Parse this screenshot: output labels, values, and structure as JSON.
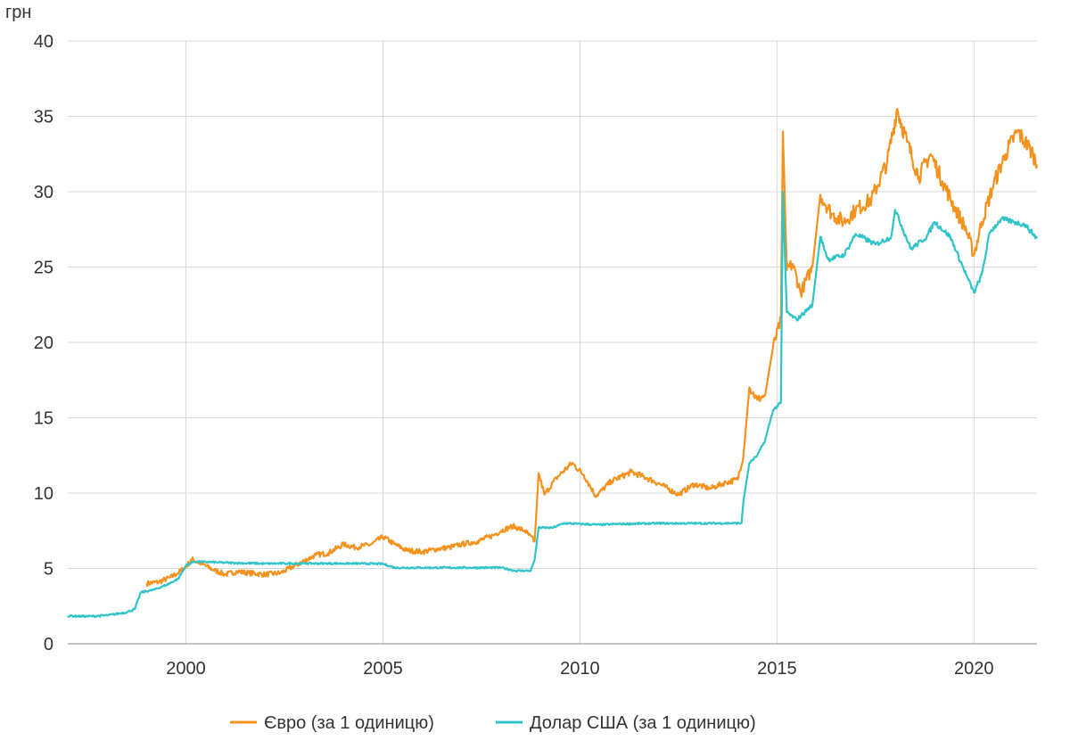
{
  "chart_data": {
    "type": "line",
    "y_unit": "грн",
    "xlim": [
      1997.0,
      2021.6
    ],
    "ylim": [
      0,
      40
    ],
    "x_ticks": [
      2000,
      2005,
      2010,
      2015,
      2020
    ],
    "x_tick_labels": [
      "2000",
      "2005",
      "2010",
      "2015",
      "2020"
    ],
    "y_ticks": [
      0,
      5,
      10,
      15,
      20,
      25,
      30,
      35,
      40
    ],
    "y_tick_labels": [
      "0",
      "5",
      "10",
      "15",
      "20",
      "25",
      "30",
      "35",
      "40"
    ],
    "grid": true,
    "legend_position": "bottom",
    "series": [
      {
        "name": "Євро (за 1 одиницю)",
        "color": "#f5921e",
        "points": [
          [
            1999.0,
            4.0
          ],
          [
            1999.3,
            4.1
          ],
          [
            1999.6,
            4.4
          ],
          [
            1999.8,
            4.7
          ],
          [
            2000.0,
            5.1
          ],
          [
            2000.15,
            5.6
          ],
          [
            2000.4,
            5.3
          ],
          [
            2000.7,
            4.9
          ],
          [
            2001.0,
            4.6
          ],
          [
            2001.3,
            4.8
          ],
          [
            2001.6,
            4.7
          ],
          [
            2002.0,
            4.6
          ],
          [
            2002.4,
            4.7
          ],
          [
            2002.7,
            5.1
          ],
          [
            2003.0,
            5.5
          ],
          [
            2003.3,
            5.9
          ],
          [
            2003.6,
            6.0
          ],
          [
            2004.0,
            6.6
          ],
          [
            2004.3,
            6.4
          ],
          [
            2004.7,
            6.6
          ],
          [
            2005.0,
            7.1
          ],
          [
            2005.3,
            6.6
          ],
          [
            2005.6,
            6.2
          ],
          [
            2006.0,
            6.1
          ],
          [
            2006.4,
            6.3
          ],
          [
            2006.7,
            6.4
          ],
          [
            2007.0,
            6.6
          ],
          [
            2007.4,
            6.8
          ],
          [
            2007.8,
            7.2
          ],
          [
            2008.0,
            7.5
          ],
          [
            2008.3,
            7.8
          ],
          [
            2008.6,
            7.5
          ],
          [
            2008.85,
            6.8
          ],
          [
            2008.95,
            11.3
          ],
          [
            2009.1,
            9.9
          ],
          [
            2009.4,
            11.0
          ],
          [
            2009.8,
            12.0
          ],
          [
            2010.1,
            11.2
          ],
          [
            2010.4,
            9.8
          ],
          [
            2010.8,
            10.8
          ],
          [
            2011.3,
            11.4
          ],
          [
            2011.7,
            11.0
          ],
          [
            2012.1,
            10.5
          ],
          [
            2012.5,
            9.9
          ],
          [
            2012.9,
            10.6
          ],
          [
            2013.3,
            10.3
          ],
          [
            2013.7,
            10.7
          ],
          [
            2014.0,
            10.9
          ],
          [
            2014.15,
            12.5
          ],
          [
            2014.3,
            17.0
          ],
          [
            2014.5,
            16.2
          ],
          [
            2014.7,
            16.5
          ],
          [
            2014.9,
            19.7
          ],
          [
            2015.1,
            21.5
          ],
          [
            2015.15,
            34.0
          ],
          [
            2015.25,
            24.8
          ],
          [
            2015.4,
            25.2
          ],
          [
            2015.6,
            23.3
          ],
          [
            2015.9,
            25.0
          ],
          [
            2016.1,
            29.8
          ],
          [
            2016.4,
            28.5
          ],
          [
            2016.7,
            28.0
          ],
          [
            2017.0,
            28.8
          ],
          [
            2017.4,
            29.5
          ],
          [
            2017.8,
            32.0
          ],
          [
            2018.05,
            35.5
          ],
          [
            2018.3,
            33.3
          ],
          [
            2018.6,
            31.0
          ],
          [
            2018.9,
            32.5
          ],
          [
            2019.2,
            30.7
          ],
          [
            2019.5,
            29.0
          ],
          [
            2019.8,
            27.5
          ],
          [
            2020.0,
            25.8
          ],
          [
            2020.2,
            28.0
          ],
          [
            2020.5,
            30.5
          ],
          [
            2020.8,
            32.5
          ],
          [
            2021.1,
            34.0
          ],
          [
            2021.3,
            33.3
          ],
          [
            2021.5,
            32.5
          ],
          [
            2021.6,
            31.8
          ]
        ]
      },
      {
        "name": "Долар США (за 1 одиницю)",
        "color": "#2ec4c8",
        "points": [
          [
            1997.0,
            1.85
          ],
          [
            1997.5,
            1.82
          ],
          [
            1998.0,
            1.88
          ],
          [
            1998.5,
            2.1
          ],
          [
            1998.7,
            2.3
          ],
          [
            1998.85,
            3.4
          ],
          [
            1999.2,
            3.6
          ],
          [
            1999.5,
            3.9
          ],
          [
            1999.8,
            4.3
          ],
          [
            2000.0,
            5.2
          ],
          [
            2000.2,
            5.45
          ],
          [
            2000.6,
            5.42
          ],
          [
            2001.0,
            5.38
          ],
          [
            2001.5,
            5.35
          ],
          [
            2002.0,
            5.32
          ],
          [
            2002.5,
            5.33
          ],
          [
            2003.0,
            5.33
          ],
          [
            2003.5,
            5.33
          ],
          [
            2004.0,
            5.33
          ],
          [
            2004.5,
            5.32
          ],
          [
            2005.0,
            5.3
          ],
          [
            2005.3,
            5.05
          ],
          [
            2006.0,
            5.05
          ],
          [
            2007.0,
            5.05
          ],
          [
            2008.0,
            5.05
          ],
          [
            2008.35,
            4.85
          ],
          [
            2008.75,
            4.85
          ],
          [
            2008.85,
            5.6
          ],
          [
            2008.95,
            7.7
          ],
          [
            2009.3,
            7.7
          ],
          [
            2009.6,
            8.0
          ],
          [
            2010.0,
            7.95
          ],
          [
            2010.5,
            7.9
          ],
          [
            2011.0,
            7.95
          ],
          [
            2012.0,
            7.99
          ],
          [
            2013.0,
            7.99
          ],
          [
            2013.9,
            8.0
          ],
          [
            2014.1,
            8.0
          ],
          [
            2014.15,
            9.5
          ],
          [
            2014.3,
            12.0
          ],
          [
            2014.5,
            12.5
          ],
          [
            2014.7,
            13.5
          ],
          [
            2014.9,
            15.5
          ],
          [
            2015.1,
            16.0
          ],
          [
            2015.15,
            30.0
          ],
          [
            2015.25,
            22.0
          ],
          [
            2015.5,
            21.5
          ],
          [
            2015.9,
            22.5
          ],
          [
            2016.1,
            27.0
          ],
          [
            2016.3,
            25.5
          ],
          [
            2016.7,
            25.8
          ],
          [
            2017.0,
            27.2
          ],
          [
            2017.5,
            26.5
          ],
          [
            2017.9,
            27.0
          ],
          [
            2018.0,
            28.8
          ],
          [
            2018.4,
            26.2
          ],
          [
            2018.8,
            27.0
          ],
          [
            2019.0,
            28.0
          ],
          [
            2019.4,
            27.0
          ],
          [
            2019.8,
            24.5
          ],
          [
            2020.0,
            23.3
          ],
          [
            2020.2,
            24.5
          ],
          [
            2020.4,
            27.3
          ],
          [
            2020.7,
            28.2
          ],
          [
            2021.0,
            28.0
          ],
          [
            2021.3,
            27.8
          ],
          [
            2021.6,
            26.9
          ]
        ]
      }
    ]
  }
}
